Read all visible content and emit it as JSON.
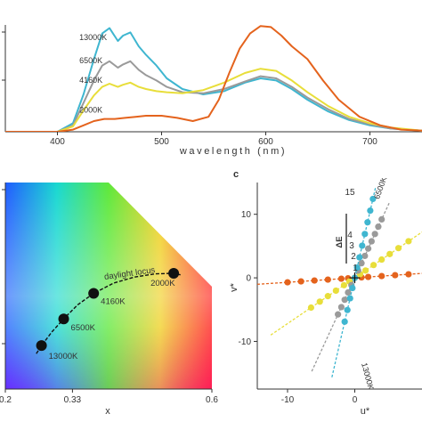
{
  "colors": {
    "k13000": "#3fb6d0",
    "k6500": "#9a9a9a",
    "k4160": "#e8de3a",
    "k2000": "#e4631d",
    "axis": "#333333"
  },
  "chart_data": [
    {
      "id": "spectra",
      "type": "line",
      "xlabel": "wavelength (nm)",
      "ylabel": "",
      "xlim": [
        350,
        750
      ],
      "x_ticks": [
        "400",
        "500",
        "600",
        "700"
      ],
      "x_tick_values": [
        400,
        500,
        600,
        700
      ],
      "series": [
        {
          "name": "13000K",
          "color": "#3fb6d0",
          "x": [
            350,
            400,
            415,
            425,
            435,
            443,
            450,
            458,
            463,
            470,
            478,
            485,
            495,
            505,
            520,
            540,
            560,
            580,
            595,
            610,
            625,
            640,
            660,
            680,
            700,
            720,
            750
          ],
          "y": [
            0,
            0,
            0.08,
            0.35,
            0.68,
            0.92,
            0.97,
            0.85,
            0.9,
            0.93,
            0.8,
            0.72,
            0.62,
            0.5,
            0.4,
            0.35,
            0.38,
            0.46,
            0.5,
            0.48,
            0.4,
            0.3,
            0.19,
            0.11,
            0.06,
            0.03,
            0.01
          ]
        },
        {
          "name": "6500K",
          "color": "#9a9a9a",
          "x": [
            350,
            400,
            415,
            425,
            435,
            443,
            450,
            458,
            463,
            470,
            478,
            485,
            495,
            505,
            520,
            540,
            560,
            580,
            595,
            610,
            625,
            640,
            660,
            680,
            700,
            720,
            750
          ],
          "y": [
            0,
            0,
            0.06,
            0.27,
            0.48,
            0.62,
            0.66,
            0.6,
            0.63,
            0.66,
            0.58,
            0.53,
            0.48,
            0.42,
            0.37,
            0.36,
            0.4,
            0.47,
            0.52,
            0.5,
            0.42,
            0.32,
            0.21,
            0.12,
            0.07,
            0.03,
            0.01
          ]
        },
        {
          "name": "4160K",
          "color": "#e8de3a",
          "x": [
            350,
            400,
            415,
            425,
            435,
            443,
            450,
            458,
            463,
            470,
            478,
            485,
            495,
            505,
            520,
            540,
            560,
            580,
            595,
            610,
            625,
            640,
            660,
            680,
            700,
            720,
            750
          ],
          "y": [
            0,
            0,
            0.05,
            0.2,
            0.34,
            0.42,
            0.45,
            0.42,
            0.44,
            0.46,
            0.42,
            0.4,
            0.38,
            0.37,
            0.36,
            0.39,
            0.46,
            0.55,
            0.59,
            0.57,
            0.48,
            0.37,
            0.24,
            0.14,
            0.08,
            0.04,
            0.01
          ]
        },
        {
          "name": "2000K",
          "color": "#e4631d",
          "x": [
            350,
            400,
            415,
            425,
            435,
            445,
            455,
            465,
            475,
            485,
            500,
            515,
            530,
            545,
            555,
            565,
            575,
            585,
            595,
            605,
            615,
            625,
            640,
            655,
            670,
            690,
            710,
            730,
            750
          ],
          "y": [
            0,
            0,
            0.02,
            0.06,
            0.1,
            0.12,
            0.12,
            0.13,
            0.14,
            0.15,
            0.15,
            0.13,
            0.1,
            0.14,
            0.3,
            0.55,
            0.78,
            0.92,
            0.99,
            0.98,
            0.9,
            0.8,
            0.68,
            0.48,
            0.3,
            0.14,
            0.06,
            0.02,
            0.01
          ]
        }
      ]
    },
    {
      "id": "chromaticity",
      "type": "scatter",
      "xlabel": "x",
      "ylabel": "",
      "xlim": [
        0.2,
        0.6
      ],
      "ylim": [
        0.2,
        0.58
      ],
      "x_ticks": [
        "0.2",
        "0.33",
        "0.6"
      ],
      "x_tick_values": [
        0.2,
        0.33,
        0.6
      ],
      "locus_label": "daylight locus",
      "points": [
        {
          "label": "13000K",
          "x": 0.27,
          "y": 0.28
        },
        {
          "label": "6500K",
          "x": 0.313,
          "y": 0.329
        },
        {
          "label": "4160K",
          "x": 0.371,
          "y": 0.376
        },
        {
          "label": "2000K",
          "x": 0.526,
          "y": 0.413
        }
      ],
      "locus": {
        "x": [
          0.26,
          0.27,
          0.29,
          0.313,
          0.34,
          0.371,
          0.41,
          0.45,
          0.49,
          0.526,
          0.54
        ],
        "y": [
          0.265,
          0.28,
          0.305,
          0.329,
          0.355,
          0.376,
          0.395,
          0.406,
          0.412,
          0.413,
          0.41
        ]
      }
    },
    {
      "id": "uv-deviation",
      "type": "scatter",
      "panel_label": "c",
      "xlabel": "u*",
      "ylabel": "v*",
      "xlim": [
        -14.5,
        10
      ],
      "ylim": [
        -17.5,
        15
      ],
      "x_ticks": [
        "-10",
        "0"
      ],
      "x_tick_values": [
        -10,
        0
      ],
      "y_ticks": [
        "10",
        "0",
        "-10"
      ],
      "y_tick_values": [
        10,
        0,
        -10
      ],
      "delta_e_label": "ΔE",
      "delta_e_steps": [
        "15",
        "4",
        "3",
        "2",
        "1"
      ],
      "series": [
        {
          "name": "2000K",
          "color": "#e4631d",
          "slope": 0.07,
          "points_u": [
            -10,
            -8,
            -6,
            -4,
            -2,
            -1,
            0,
            1,
            2,
            4,
            6,
            8
          ],
          "line_u": [
            -14.5,
            10
          ]
        },
        {
          "name": "4160K",
          "color": "#e8de3a",
          "slope": 0.72,
          "points_u": [
            -6.5,
            -5.2,
            -4,
            -2.8,
            -1.6,
            -0.8,
            0,
            0.8,
            1.6,
            2.8,
            4,
            5.2,
            6.5,
            8
          ],
          "line_u": [
            -12.5,
            10
          ]
        },
        {
          "name": "6500K",
          "color": "#9a9a9a",
          "slope": 2.3,
          "points_u": [
            -2.5,
            -2,
            -1.5,
            -1,
            -0.5,
            0,
            0.5,
            1,
            1.5,
            2,
            2.5,
            3,
            3.5,
            4
          ],
          "line_u": [
            -6.4,
            5.2
          ]
        },
        {
          "name": "13000K",
          "color": "#3fb6d0",
          "slope": 4.6,
          "points_u": [
            -1.5,
            -1.1,
            -0.7,
            -0.35,
            0,
            0.35,
            0.7,
            1.1,
            1.5,
            1.9,
            2.3,
            2.7
          ],
          "line_u": [
            -3.4,
            3.1
          ]
        }
      ]
    }
  ]
}
